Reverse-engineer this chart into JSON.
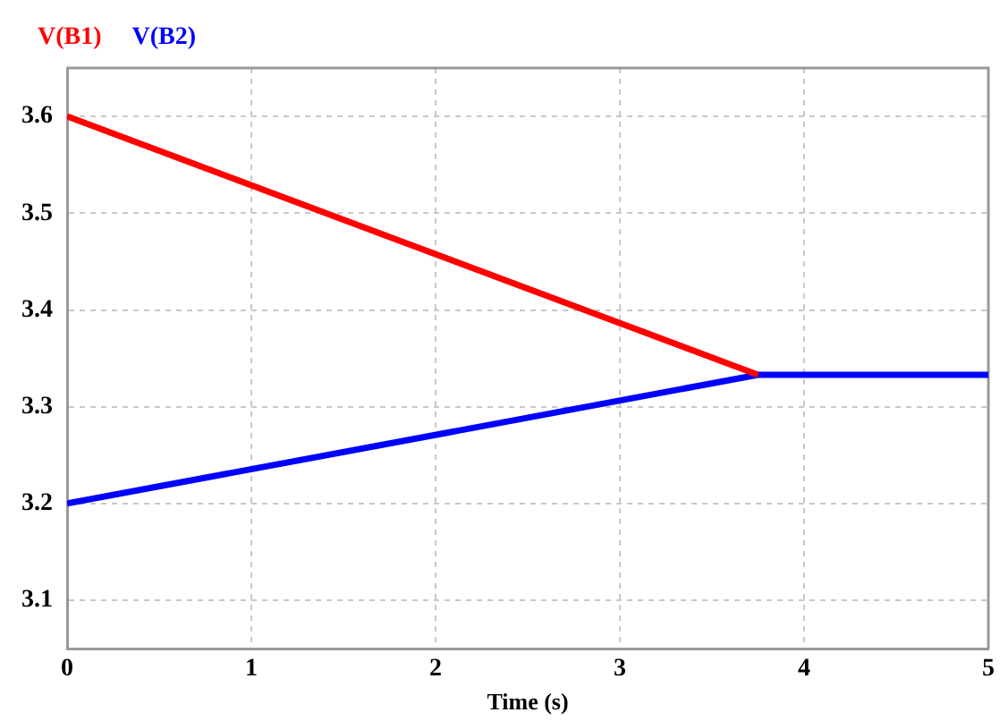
{
  "chart_data": {
    "type": "line",
    "xlabel": "Time (s)",
    "x": [
      0,
      3.75,
      5
    ],
    "series": [
      {
        "name": "V(B1)",
        "color": "#ff0000",
        "values": [
          3.6,
          3.333,
          null
        ]
      },
      {
        "name": "V(B2)",
        "color": "#0000ff",
        "values": [
          3.2,
          3.333,
          3.333
        ]
      }
    ],
    "xlim": [
      0,
      5
    ],
    "xticks": [
      0,
      1,
      2,
      3,
      4,
      5
    ],
    "ylim": [
      3.05,
      3.65
    ],
    "yticks": [
      3.1,
      3.2,
      3.3,
      3.4,
      3.5,
      3.6
    ],
    "grid": true,
    "legend": "top left",
    "marker": "none",
    "line_style": "solid"
  }
}
